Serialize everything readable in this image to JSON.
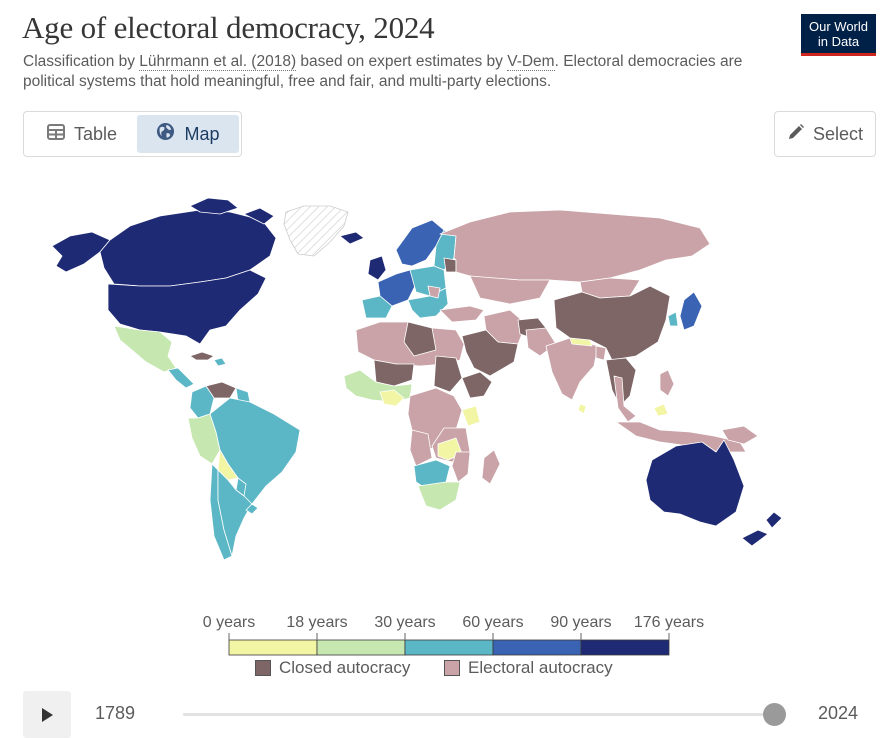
{
  "header": {
    "title": "Age of electoral democracy, 2024",
    "subtitle_pre": "Classification by ",
    "subtitle_link1": "Lührmann et al. (2018)",
    "subtitle_mid": " based on expert estimates by ",
    "subtitle_link2": "V-Dem",
    "subtitle_post": ". Electoral democracies are political systems that hold meaningful, free and fair, and multi-party elections.",
    "logo_line1": "Our World",
    "logo_line2": "in Data"
  },
  "tabs": [
    {
      "label": "Table",
      "icon": "table-icon",
      "active": false
    },
    {
      "label": "Map",
      "icon": "globe-icon",
      "active": true
    }
  ],
  "select_button": {
    "label": "Select",
    "icon": "pencil-icon"
  },
  "colors": {
    "c0": "#f2f5a4",
    "c18": "#c6e8b0",
    "c30": "#5bb7c6",
    "c60": "#3a63b3",
    "c90": "#1f2a75",
    "closed": "#7e6667",
    "electoral": "#c9a3a7",
    "nodata": "#ffffff",
    "ocean": "#ffffff",
    "border": "#ffffff"
  },
  "legend": {
    "ticks": [
      "0 years",
      "18 years",
      "30 years",
      "60 years",
      "90 years",
      "176 years"
    ],
    "bins": [
      "c0",
      "c18",
      "c30",
      "c60",
      "c90"
    ],
    "categories": [
      {
        "label": "Closed autocracy",
        "color_key": "closed"
      },
      {
        "label": "Electoral autocracy",
        "color_key": "electoral"
      }
    ]
  },
  "timeline": {
    "start": "1789",
    "end": "2024",
    "value": "2024"
  }
}
